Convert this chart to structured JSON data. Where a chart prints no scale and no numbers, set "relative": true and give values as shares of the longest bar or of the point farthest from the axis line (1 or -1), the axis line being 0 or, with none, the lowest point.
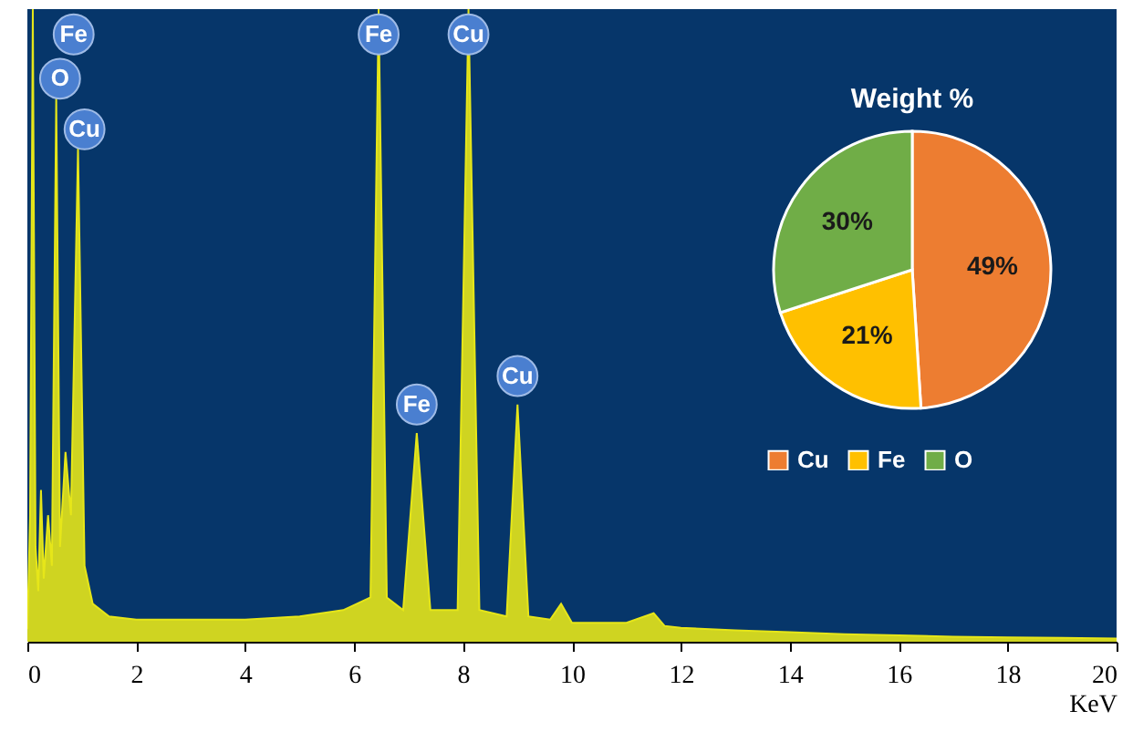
{
  "chart_data": [
    {
      "type": "area",
      "relative": true,
      "color": "#e6e619",
      "xlabel": "KeV",
      "xlim": [
        0,
        20
      ],
      "xticks": [
        0,
        2,
        4,
        6,
        8,
        10,
        12,
        14,
        16,
        18,
        20
      ],
      "x": [
        0,
        0.05,
        0.1,
        0.15,
        0.2,
        0.25,
        0.3,
        0.38,
        0.45,
        0.53,
        0.6,
        0.7,
        0.8,
        0.93,
        1.05,
        1.2,
        1.5,
        2,
        3,
        4,
        5,
        5.8,
        6.3,
        6.45,
        6.6,
        6.9,
        7.15,
        7.4,
        7.9,
        8.1,
        8.3,
        8.8,
        9.0,
        9.2,
        9.6,
        9.8,
        10,
        11,
        11.5,
        11.7,
        12,
        13,
        14,
        15,
        16,
        17,
        18,
        19,
        20
      ],
      "values": [
        0.02,
        0.2,
        1,
        0.15,
        0.08,
        0.24,
        0.1,
        0.2,
        0.12,
        0.86,
        0.15,
        0.3,
        0.2,
        0.78,
        0.12,
        0.06,
        0.04,
        0.035,
        0.035,
        0.035,
        0.04,
        0.05,
        0.07,
        1,
        0.07,
        0.05,
        0.33,
        0.05,
        0.05,
        1,
        0.05,
        0.04,
        0.375,
        0.04,
        0.035,
        0.06,
        0.03,
        0.03,
        0.045,
        0.025,
        0.022,
        0.018,
        0.015,
        0.012,
        0.01,
        0.008,
        0.007,
        0.006,
        0.005
      ],
      "annotations": [
        {
          "text": "Fe",
          "x": 0.85,
          "y": 0.96
        },
        {
          "text": "O",
          "x": 0.6,
          "y": 0.89
        },
        {
          "text": "Cu",
          "x": 1.05,
          "y": 0.81
        },
        {
          "text": "Fe",
          "x": 6.45,
          "y": 0.96
        },
        {
          "text": "Cu",
          "x": 8.1,
          "y": 0.96
        },
        {
          "text": "Fe",
          "x": 7.15,
          "y": 0.375
        },
        {
          "text": "Cu",
          "x": 9.0,
          "y": 0.42
        }
      ]
    },
    {
      "type": "pie",
      "title": "Weight %",
      "categories": [
        "Cu",
        "Fe",
        "O"
      ],
      "values": [
        49,
        21,
        30
      ],
      "colors": [
        "#ed7d31",
        "#ffc000",
        "#70ad47"
      ],
      "value_labels": [
        "49%",
        "21%",
        "30%"
      ],
      "legend": "bottom"
    }
  ]
}
